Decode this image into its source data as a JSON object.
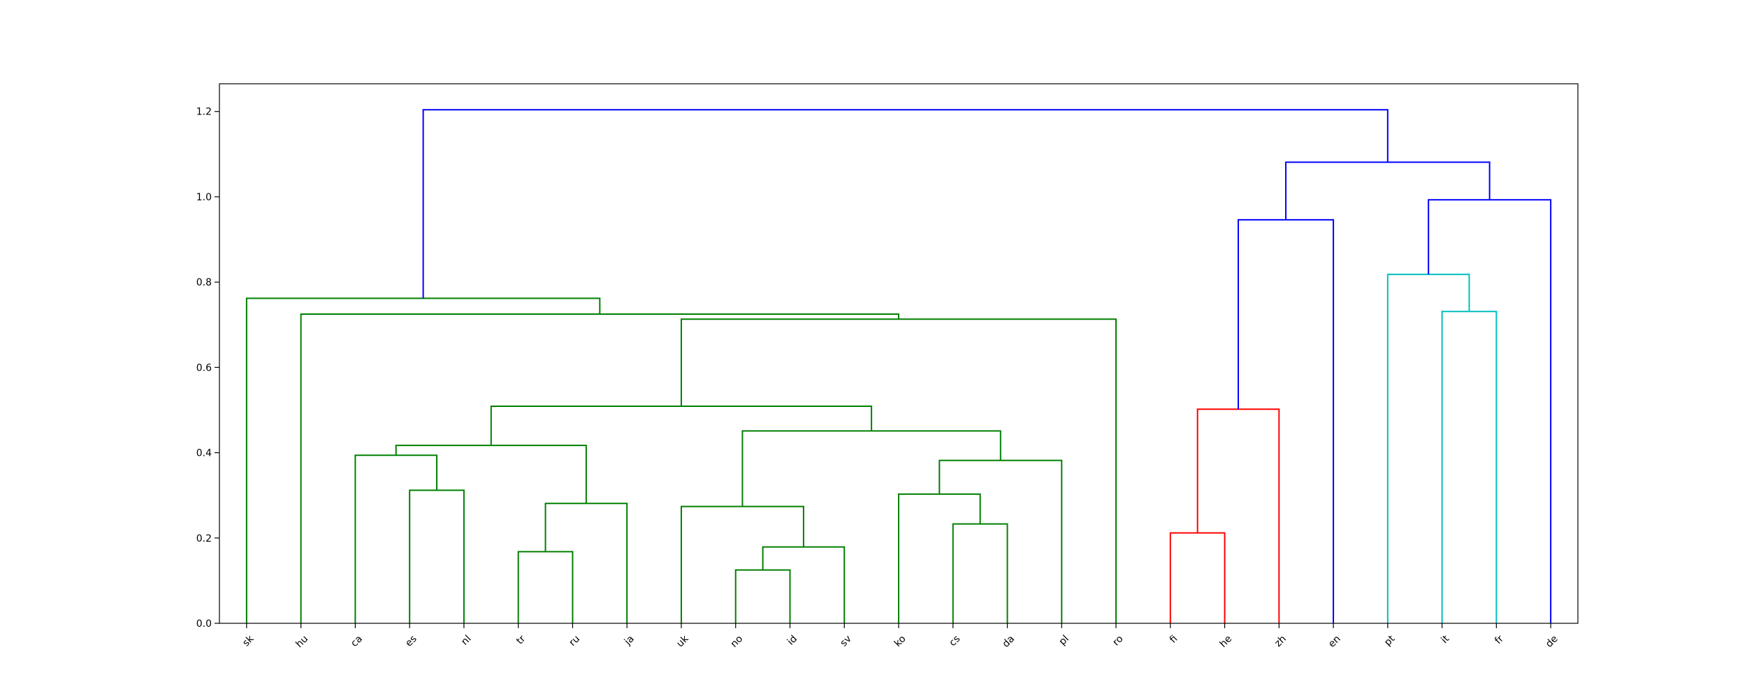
{
  "chart_data": {
    "type": "dendrogram",
    "title": "",
    "xlabel": "",
    "ylabel": "",
    "ylim": [
      0,
      1.265
    ],
    "y_ticks": [
      "0.0",
      "0.2",
      "0.4",
      "0.6",
      "0.8",
      "1.0",
      "1.2"
    ],
    "leaves": [
      "sk",
      "hu",
      "ca",
      "es",
      "nl",
      "tr",
      "ru",
      "ja",
      "uk",
      "no",
      "id",
      "sv",
      "ko",
      "cs",
      "da",
      "pl",
      "ro",
      "fi",
      "he",
      "zh",
      "en",
      "pt",
      "it",
      "fr",
      "de"
    ],
    "merges": [
      {
        "left": "no",
        "right": "id",
        "height": 0.125,
        "color": "#008000"
      },
      {
        "left": "tr",
        "right": "ru",
        "height": 0.168,
        "color": "#008000"
      },
      {
        "left": "no+id",
        "right": "sv",
        "height": 0.179,
        "color": "#008000"
      },
      {
        "left": "fi",
        "right": "he",
        "height": 0.212,
        "color": "#ff0000"
      },
      {
        "left": "cs",
        "right": "da",
        "height": 0.233,
        "color": "#008000"
      },
      {
        "left": "uk",
        "right": "no+id+sv",
        "height": 0.274,
        "color": "#008000"
      },
      {
        "left": "tr+ru",
        "right": "ja",
        "height": 0.281,
        "color": "#008000"
      },
      {
        "left": "ko",
        "right": "cs+da",
        "height": 0.303,
        "color": "#008000"
      },
      {
        "left": "es",
        "right": "nl",
        "height": 0.312,
        "color": "#008000"
      },
      {
        "left": "ko+cs+da",
        "right": "pl",
        "height": 0.382,
        "color": "#008000"
      },
      {
        "left": "ca",
        "right": "es+nl",
        "height": 0.394,
        "color": "#008000"
      },
      {
        "left": "ca+es+nl",
        "right": "tr+ru+ja",
        "height": 0.417,
        "color": "#008000"
      },
      {
        "left": "uk+no+id+sv",
        "right": "ko+cs+da+pl",
        "height": 0.451,
        "color": "#008000"
      },
      {
        "left": "fi+he",
        "right": "zh",
        "height": 0.502,
        "color": "#ff0000"
      },
      {
        "left": "ca..ja",
        "right": "uk..pl",
        "height": 0.509,
        "color": "#008000"
      },
      {
        "left": "ca..pl",
        "right": "ro",
        "height": 0.713,
        "color": "#008000"
      },
      {
        "left": "hu",
        "right": "ca..ro",
        "height": 0.725,
        "color": "#008000"
      },
      {
        "left": "it",
        "right": "fr",
        "height": 0.731,
        "color": "#00bfbf"
      },
      {
        "left": "sk",
        "right": "hu..ro",
        "height": 0.762,
        "color": "#008000"
      },
      {
        "left": "pt",
        "right": "it+fr",
        "height": 0.818,
        "color": "#00bfbf"
      },
      {
        "left": "fi+he+zh",
        "right": "en",
        "height": 0.946,
        "color": "#0000ff"
      },
      {
        "left": "pt+it+fr",
        "right": "de",
        "height": 0.993,
        "color": "#0000ff"
      },
      {
        "left": "fi..en",
        "right": "pt..de",
        "height": 1.081,
        "color": "#0000ff"
      },
      {
        "left": "sk..ro",
        "right": "fi..de",
        "height": 1.204,
        "color": "#0000ff"
      }
    ]
  }
}
